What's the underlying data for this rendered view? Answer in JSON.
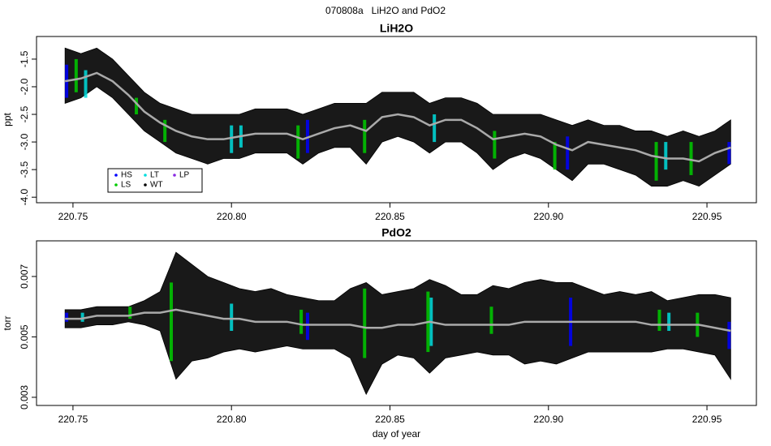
{
  "title": "070808a   LiH2O and PdO2",
  "chart_data": [
    {
      "type": "band",
      "title": "LiH2O",
      "ylabel": "ppt",
      "x": [
        220.7475,
        220.7525,
        220.7575,
        220.7625,
        220.7675,
        220.7725,
        220.7775,
        220.7825,
        220.7875,
        220.7925,
        220.7975,
        220.8025,
        220.8075,
        220.8125,
        220.8175,
        220.8225,
        220.8275,
        220.8325,
        220.8375,
        220.8425,
        220.8475,
        220.8525,
        220.8575,
        220.8625,
        220.8675,
        220.8725,
        220.8775,
        220.8825,
        220.8875,
        220.8925,
        220.8975,
        220.9025,
        220.9075,
        220.9125,
        220.9175,
        220.9225,
        220.9275,
        220.9325,
        220.9375,
        220.9425,
        220.9475,
        220.9525,
        220.9575
      ],
      "high": [
        -1.3,
        -1.4,
        -1.3,
        -1.5,
        -1.8,
        -2.1,
        -2.3,
        -2.4,
        -2.5,
        -2.5,
        -2.5,
        -2.5,
        -2.4,
        -2.4,
        -2.4,
        -2.5,
        -2.4,
        -2.3,
        -2.3,
        -2.3,
        -2.1,
        -2.1,
        -2.1,
        -2.3,
        -2.2,
        -2.2,
        -2.3,
        -2.5,
        -2.5,
        -2.5,
        -2.5,
        -2.6,
        -2.7,
        -2.6,
        -2.7,
        -2.7,
        -2.8,
        -2.8,
        -2.9,
        -2.8,
        -2.9,
        -2.8,
        -2.6
      ],
      "low": [
        -2.3,
        -2.2,
        -2.0,
        -2.2,
        -2.5,
        -2.8,
        -3.0,
        -3.2,
        -3.3,
        -3.4,
        -3.3,
        -3.3,
        -3.2,
        -3.2,
        -3.2,
        -3.4,
        -3.2,
        -3.1,
        -3.1,
        -3.4,
        -3.0,
        -2.9,
        -3.0,
        -3.2,
        -3.0,
        -3.0,
        -3.2,
        -3.5,
        -3.3,
        -3.2,
        -3.3,
        -3.5,
        -3.7,
        -3.4,
        -3.4,
        -3.5,
        -3.6,
        -3.8,
        -3.8,
        -3.7,
        -3.8,
        -3.6,
        -3.4
      ],
      "smooth": [
        -1.9,
        -1.85,
        -1.75,
        -1.9,
        -2.15,
        -2.45,
        -2.65,
        -2.8,
        -2.9,
        -2.95,
        -2.95,
        -2.9,
        -2.85,
        -2.85,
        -2.85,
        -2.95,
        -2.85,
        -2.75,
        -2.7,
        -2.8,
        -2.55,
        -2.5,
        -2.55,
        -2.7,
        -2.6,
        -2.6,
        -2.75,
        -2.95,
        -2.9,
        -2.85,
        -2.9,
        -3.05,
        -3.15,
        -3.0,
        -3.05,
        -3.1,
        -3.15,
        -3.25,
        -3.3,
        -3.3,
        -3.35,
        -3.2,
        -3.1
      ],
      "band_color": "#000000",
      "smooth_color": "#aaaaaa",
      "highlight_x": [
        220.748,
        220.754,
        220.751,
        220.77,
        220.779,
        220.8,
        220.803,
        220.821,
        220.824,
        220.842,
        220.864,
        220.883,
        220.906,
        220.902,
        220.934,
        220.937,
        220.945,
        220.957
      ],
      "highlight_low": [
        -2.2,
        -2.2,
        -2.1,
        -2.5,
        -3.0,
        -3.2,
        -3.1,
        -3.3,
        -3.2,
        -3.2,
        -3.0,
        -3.3,
        -3.5,
        -3.5,
        -3.7,
        -3.5,
        -3.6,
        -3.4
      ],
      "highlight_high": [
        -1.6,
        -1.7,
        -1.5,
        -2.2,
        -2.6,
        -2.7,
        -2.7,
        -2.7,
        -2.6,
        -2.6,
        -2.5,
        -2.8,
        -2.9,
        -3.0,
        -3.0,
        -3.0,
        -3.0,
        -3.0
      ],
      "highlight_colors": [
        "#0000ff",
        "#00dddd",
        "#00cc00",
        "#00cc00",
        "#00cc00",
        "#00dddd",
        "#00dddd",
        "#00cc00",
        "#0000ff",
        "#00cc00",
        "#00dddd",
        "#00cc00",
        "#0000ff",
        "#00cc00",
        "#00cc00",
        "#00dddd",
        "#00cc00",
        "#0000ff"
      ],
      "legend": [
        {
          "name": "HS",
          "color": "#0000ff"
        },
        {
          "name": "LS",
          "color": "#00cc00"
        },
        {
          "name": "LT",
          "color": "#00dddd"
        },
        {
          "name": "WT",
          "color": "#000000"
        },
        {
          "name": "LP",
          "color": "#8a2be2"
        }
      ],
      "xlim": [
        220.7385,
        220.9656
      ],
      "ylim": [
        -4.1,
        -1.09
      ],
      "xticks": [
        220.75,
        {
          "value": 220.8,
          "label": "220.80"
        },
        220.85,
        {
          "value": 220.9,
          "label": "220.90"
        },
        220.95
      ],
      "yticks": [
        -1.5,
        {
          "value": -2,
          "label": "-2.0"
        },
        -2.5,
        {
          "value": -3,
          "label": "-3.0"
        },
        -3.5,
        {
          "value": -4,
          "label": "-4.0"
        }
      ]
    },
    {
      "type": "band",
      "title": "PdO2",
      "ylabel": "torr",
      "xlabel": "day of year",
      "x": [
        220.7475,
        220.7525,
        220.7575,
        220.7625,
        220.7675,
        220.7725,
        220.7775,
        220.7825,
        220.7875,
        220.7925,
        220.7975,
        220.8025,
        220.8075,
        220.8125,
        220.8175,
        220.8225,
        220.8275,
        220.8325,
        220.8375,
        220.8425,
        220.8475,
        220.8525,
        220.8575,
        220.8625,
        220.8675,
        220.8725,
        220.8775,
        220.8825,
        220.8875,
        220.8925,
        220.8975,
        220.9025,
        220.9075,
        220.9125,
        220.9175,
        220.9225,
        220.9275,
        220.9325,
        220.9375,
        220.9425,
        220.9475,
        220.9525,
        220.9575
      ],
      "high": [
        0.0059,
        0.0059,
        0.006,
        0.006,
        0.006,
        0.0062,
        0.0065,
        0.0078,
        0.0074,
        0.007,
        0.0068,
        0.0066,
        0.0065,
        0.0066,
        0.0064,
        0.0063,
        0.0062,
        0.0062,
        0.0066,
        0.0068,
        0.0064,
        0.0065,
        0.0066,
        0.0069,
        0.0067,
        0.0064,
        0.0064,
        0.0067,
        0.0066,
        0.0068,
        0.0069,
        0.0068,
        0.0068,
        0.0066,
        0.0064,
        0.0065,
        0.0064,
        0.0065,
        0.0062,
        0.0063,
        0.0064,
        0.0064,
        0.0063
      ],
      "low": [
        0.0053,
        0.0053,
        0.0054,
        0.0054,
        0.0055,
        0.0054,
        0.0052,
        0.0036,
        0.0042,
        0.0043,
        0.0045,
        0.0046,
        0.0045,
        0.0046,
        0.0047,
        0.0046,
        0.0046,
        0.0046,
        0.0043,
        0.0031,
        0.0041,
        0.0044,
        0.0043,
        0.0038,
        0.0043,
        0.0044,
        0.0045,
        0.0044,
        0.0044,
        0.0041,
        0.0042,
        0.0041,
        0.0043,
        0.0045,
        0.0045,
        0.0045,
        0.0045,
        0.0045,
        0.0046,
        0.0046,
        0.0045,
        0.0044,
        0.0036
      ],
      "smooth": [
        0.0056,
        0.0056,
        0.0057,
        0.0057,
        0.0057,
        0.0058,
        0.0058,
        0.0059,
        0.0058,
        0.0057,
        0.0056,
        0.0056,
        0.0055,
        0.0055,
        0.0055,
        0.0054,
        0.0054,
        0.0054,
        0.0054,
        0.0053,
        0.0053,
        0.0054,
        0.0054,
        0.0055,
        0.0054,
        0.0054,
        0.0054,
        0.0054,
        0.0054,
        0.0055,
        0.0055,
        0.0055,
        0.0055,
        0.0055,
        0.0055,
        0.0055,
        0.0055,
        0.0054,
        0.0054,
        0.0054,
        0.0054,
        0.0053,
        0.0052
      ],
      "band_color": "#000000",
      "smooth_color": "#aaaaaa",
      "highlight_x": [
        220.748,
        220.753,
        220.768,
        220.781,
        220.8,
        220.822,
        220.824,
        220.842,
        220.863,
        220.862,
        220.882,
        220.907,
        220.935,
        220.938,
        220.947,
        220.957
      ],
      "highlight_low": [
        0.0055,
        0.0055,
        0.0056,
        0.0042,
        0.0052,
        0.0051,
        0.0049,
        0.0043,
        0.0047,
        0.0045,
        0.0051,
        0.0047,
        0.0052,
        0.0052,
        0.005,
        0.0046
      ],
      "highlight_high": [
        0.0058,
        0.0058,
        0.006,
        0.0068,
        0.0061,
        0.0059,
        0.0058,
        0.0066,
        0.0063,
        0.0065,
        0.006,
        0.0063,
        0.0059,
        0.0058,
        0.0058,
        0.0055
      ],
      "highlight_colors": [
        "#0000ff",
        "#00dddd",
        "#00cc00",
        "#00cc00",
        "#00dddd",
        "#00cc00",
        "#0000ff",
        "#00cc00",
        "#00dddd",
        "#00cc00",
        "#00cc00",
        "#0000ff",
        "#00cc00",
        "#00dddd",
        "#00cc00",
        "#0000ff"
      ],
      "xlim": [
        220.7385,
        220.9656
      ],
      "ylim": [
        0.00273,
        0.00818
      ],
      "xticks": [
        220.75,
        {
          "value": 220.8,
          "label": "220.80"
        },
        220.85,
        {
          "value": 220.9,
          "label": "220.90"
        },
        220.95
      ],
      "yticks": [
        0.003,
        0.005,
        0.007
      ]
    }
  ]
}
